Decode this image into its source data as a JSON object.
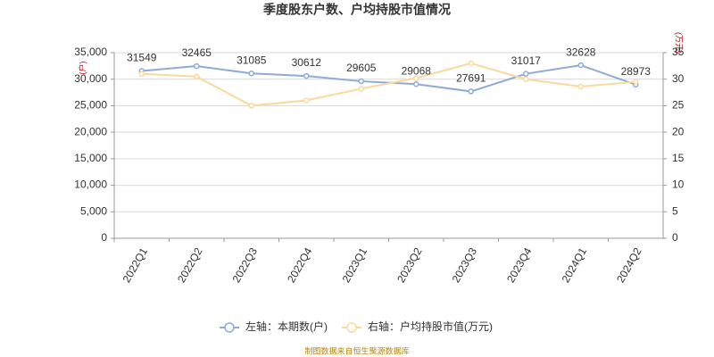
{
  "chart_data": {
    "type": "line",
    "title": "季度股东户数、户均持股市值情况",
    "categories": [
      "2022Q1",
      "2022Q2",
      "2022Q3",
      "2022Q4",
      "2023Q1",
      "2023Q2",
      "2023Q3",
      "2023Q4",
      "2024Q1",
      "2024Q2"
    ],
    "series": [
      {
        "name": "左轴：本期数(户)",
        "color": "#8eaad6",
        "values": [
          31549,
          32465,
          31085,
          30612,
          29605,
          29068,
          27691,
          31017,
          32628,
          28973
        ]
      },
      {
        "name": "右轴：户均持股市值(万元)",
        "color": "#fbd99a",
        "axis": "y2",
        "values": [
          31,
          30.5,
          25,
          26,
          28.2,
          30.2,
          33,
          30,
          28.6,
          29.5
        ]
      }
    ],
    "ylabel": "(户)",
    "y2label": "(万元)",
    "ylim": [
      0,
      35000
    ],
    "yticks": [
      0,
      {
        "value": 5000,
        "label": "5,000"
      },
      {
        "value": 10000,
        "label": "10,000"
      },
      {
        "value": 15000,
        "label": "15,000"
      },
      {
        "value": 20000,
        "label": "20,000"
      },
      {
        "value": 25000,
        "label": "25,000"
      },
      {
        "value": 30000,
        "label": "30,000"
      },
      {
        "value": 35000,
        "label": "35,000"
      }
    ],
    "y2lim": [
      0,
      35
    ],
    "y2ticks": [
      0,
      5,
      10,
      15,
      20,
      25,
      30,
      35
    ],
    "grid": true,
    "legend": "bottom",
    "source": "制图数据来自恒生聚源数据库"
  }
}
